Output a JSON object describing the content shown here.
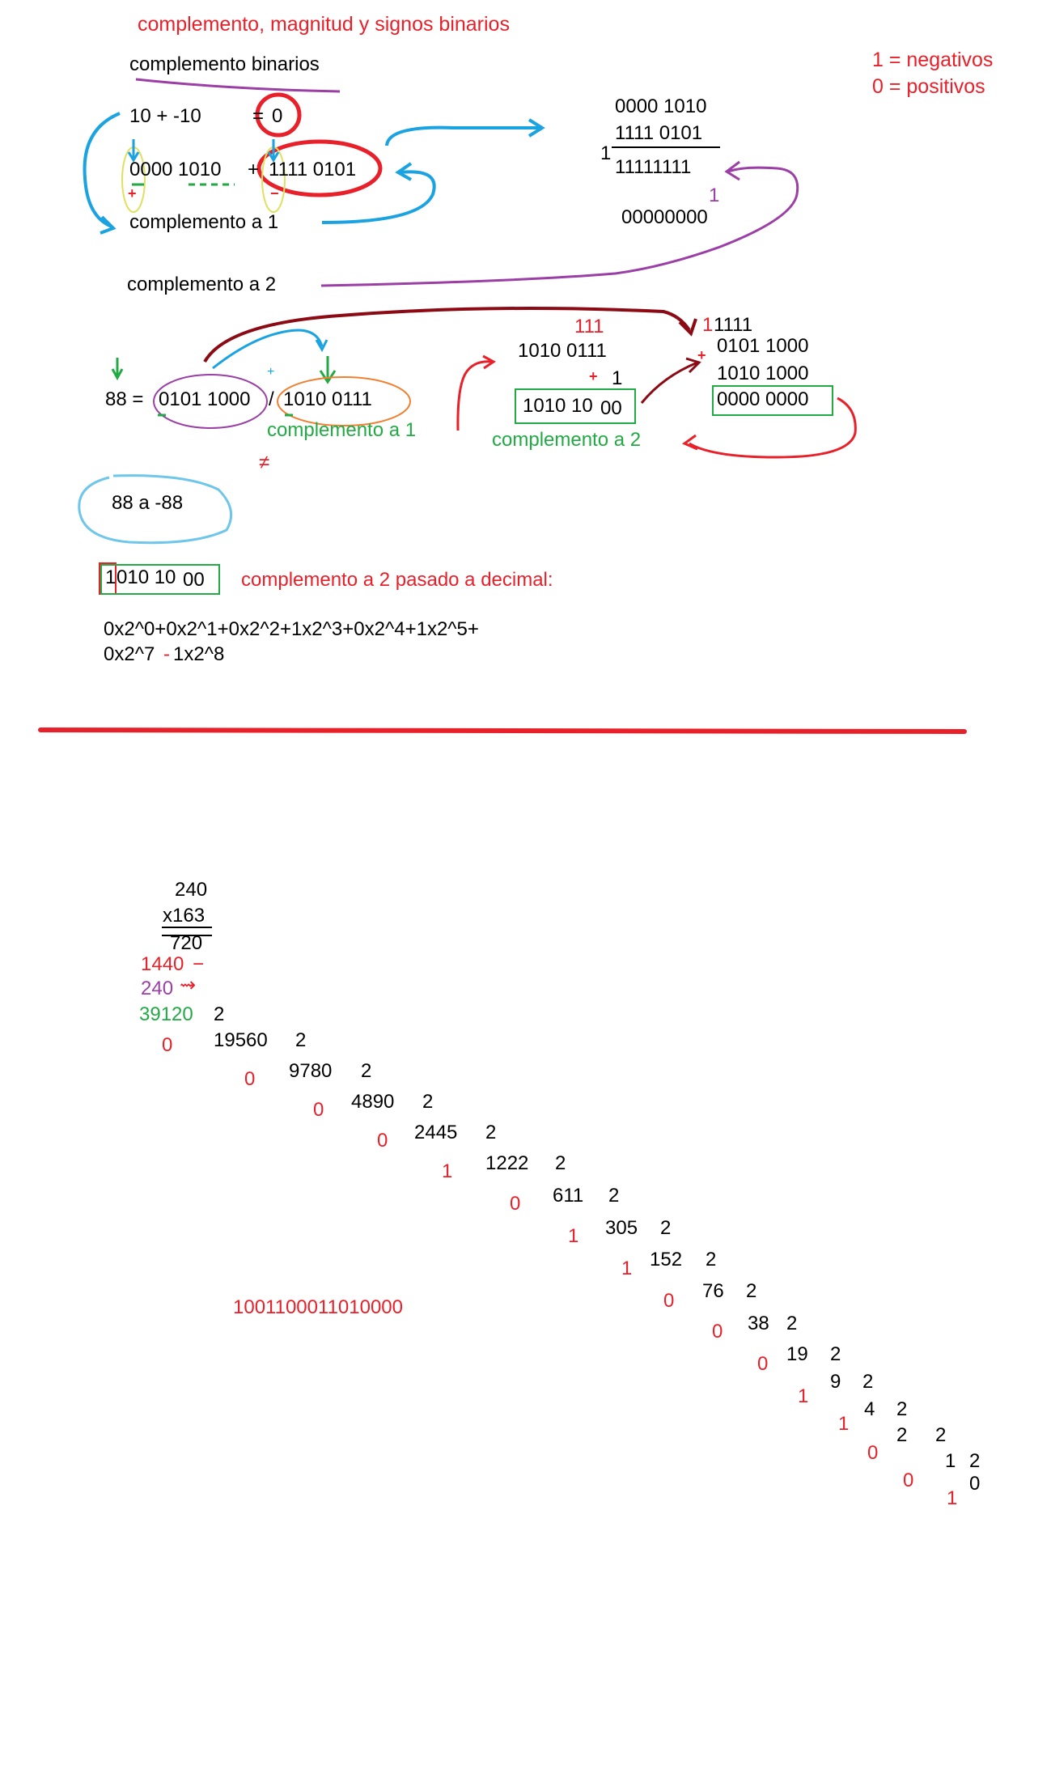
{
  "section1": {
    "title": "complemento, magnitud y signos binarios",
    "legend": {
      "neg": "1 = negativos",
      "pos": "0 = positivos"
    },
    "heading": "complemento binarios",
    "equation": {
      "left": "10  +  -10",
      "eq": "= ",
      "result": "0"
    },
    "binary_left": "0000 1010",
    "plus": "+",
    "binary_right": "1111 0101",
    "sign_plus": "+",
    "sign_minus": "−",
    "c1_label": "complemento a 1",
    "c2_label": "complemento a 2",
    "add": {
      "a": "0000 1010",
      "b": "1111 0101",
      "carry_left": "1",
      "sum": "11111111",
      "carry_one": "1",
      "result": "00000000"
    }
  },
  "section2": {
    "eq_prefix": "88 =",
    "bin_a": "0101 1000",
    "slash": "/",
    "bin_b": "1010 0111",
    "small_plus": "+",
    "c1_label": "complemento a 1",
    "c2_label": "complemento a 2",
    "neq": "≠",
    "mid": {
      "carries": "111",
      "value": "1010 0111",
      "plus": "+",
      "one": "1",
      "result_a": "1010 10",
      "result_b": "00"
    },
    "right": {
      "carry_red": "1",
      "carry_black": "1111",
      "plus": "+",
      "a": "0101 1000",
      "b": "1010 1000",
      "result": "0000 0000"
    },
    "bubble": "88 a -88"
  },
  "section3": {
    "boxed_first": "1",
    "boxed_rest": "010 10",
    "boxed_tail": "00",
    "title": "complemento a 2 pasado a decimal:",
    "formula_line1": "0x2^0+0x2^1+0x2^2+1x2^3+0x2^4+1x2^5+",
    "formula_line2a": "0x2^7",
    "formula_minus": "-",
    "formula_line2b": "1x2^8"
  },
  "multiplication": {
    "a": "240",
    "b": "x163",
    "p1": "720",
    "p2": "1440",
    "p2_mark": "−",
    "p3": "240",
    "p3_mark": "⇝",
    "product": "39120"
  },
  "division": {
    "steps": [
      {
        "q": "39120",
        "d": "2",
        "r": "0"
      },
      {
        "q": "19560",
        "d": "2",
        "r": "0"
      },
      {
        "q": "9780",
        "d": "2",
        "r": "0"
      },
      {
        "q": "4890",
        "d": "2",
        "r": "0"
      },
      {
        "q": "2445",
        "d": "2",
        "r": "1"
      },
      {
        "q": "1222",
        "d": "2",
        "r": "0"
      },
      {
        "q": "611",
        "d": "2",
        "r": "1"
      },
      {
        "q": "305",
        "d": "2",
        "r": "1"
      },
      {
        "q": "152",
        "d": "2",
        "r": "0"
      },
      {
        "q": "76",
        "d": "2",
        "r": "0"
      },
      {
        "q": "38",
        "d": "2",
        "r": "0"
      },
      {
        "q": "19",
        "d": "2",
        "r": "1"
      },
      {
        "q": "9",
        "d": "2",
        "r": "1"
      },
      {
        "q": "4",
        "d": "2",
        "r": "0"
      },
      {
        "q": "2",
        "d": "2",
        "r": "0"
      },
      {
        "q": "1",
        "d": "2",
        "r": "1"
      }
    ],
    "final_zero": "0",
    "result_binary": "1001100011010000"
  }
}
